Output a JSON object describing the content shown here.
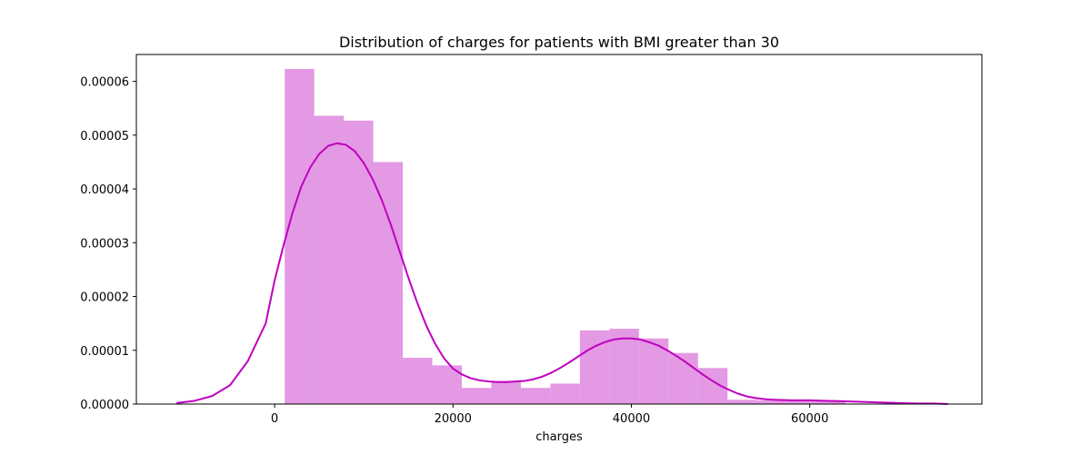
{
  "chart_data": {
    "type": "bar",
    "title": "Distribution of charges for patients with BMI greater than 30",
    "xlabel": "charges",
    "ylabel": "",
    "xlim": [
      -15500,
      79300
    ],
    "ylim": [
      0,
      6.5e-05
    ],
    "x_ticks": [
      0,
      20000,
      40000,
      60000
    ],
    "y_ticks": [
      0,
      1e-05,
      2e-05,
      3e-05,
      4e-05,
      5e-05,
      6e-05
    ],
    "x_tick_labels": [
      "0",
      "20000",
      "40000",
      "60000"
    ],
    "y_tick_labels": [
      "0.00000",
      "0.00001",
      "0.00002",
      "0.00003",
      "0.00004",
      "0.00005",
      "0.00006"
    ],
    "grid": false,
    "colors": {
      "bars": "#e399e3",
      "kde": "#bf00bf"
    },
    "histogram": {
      "bin_edges": [
        1130,
        4440,
        7750,
        11060,
        14370,
        17680,
        20990,
        24300,
        27610,
        30920,
        34230,
        37540,
        40850,
        44160,
        47470,
        50780,
        54090,
        57400,
        60710,
        64020
      ],
      "densities": [
        6.23e-05,
        5.36e-05,
        5.27e-05,
        4.5e-05,
        8.6e-06,
        7.2e-06,
        3e-06,
        4.3e-06,
        3e-06,
        3.8e-06,
        1.37e-05,
        1.4e-05,
        1.22e-05,
        9.5e-06,
        6.7e-06,
        8e-07,
        7e-07,
        7e-07,
        7e-07
      ]
    },
    "series": [
      {
        "type": "line",
        "x": [
          -11000,
          -9000,
          -7000,
          -5000,
          -3000,
          -1000,
          0,
          1000,
          2000,
          3000,
          4000,
          5000,
          6000,
          7000,
          8000,
          9000,
          10000,
          11000,
          12000,
          13000,
          14000,
          15000,
          16000,
          17000,
          18000,
          19000,
          20000,
          21000,
          22000,
          23000,
          24000,
          25000,
          26000,
          27000,
          28000,
          29000,
          30000,
          31000,
          32000,
          33000,
          34000,
          35000,
          36000,
          37000,
          38000,
          39000,
          40000,
          41000,
          42000,
          43000,
          44000,
          45000,
          46000,
          47000,
          48000,
          49000,
          50000,
          51000,
          52000,
          53000,
          54000,
          55000,
          56000,
          58000,
          60000,
          62000,
          64000,
          66000,
          68000,
          70000,
          72000,
          74000,
          75500
        ],
        "y": [
          2e-07,
          6e-07,
          1.5e-06,
          3.5e-06,
          8e-06,
          1.5e-05,
          2.3e-05,
          2.95e-05,
          3.55e-05,
          4.05e-05,
          4.4e-05,
          4.65e-05,
          4.8e-05,
          4.85e-05,
          4.82e-05,
          4.7e-05,
          4.48e-05,
          4.18e-05,
          3.8e-05,
          3.35e-05,
          2.85e-05,
          2.35e-05,
          1.88e-05,
          1.46e-05,
          1.12e-05,
          8.5e-06,
          6.6e-06,
          5.5e-06,
          4.8e-06,
          4.4e-06,
          4.2e-06,
          4.1e-06,
          4.1e-06,
          4.2e-06,
          4.3e-06,
          4.6e-06,
          5.1e-06,
          5.8e-06,
          6.7e-06,
          7.7e-06,
          8.8e-06,
          9.9e-06,
          1.08e-05,
          1.15e-05,
          1.2e-05,
          1.22e-05,
          1.22e-05,
          1.2e-05,
          1.15e-05,
          1.09e-05,
          1e-05,
          9e-06,
          7.9e-06,
          6.7e-06,
          5.5e-06,
          4.4e-06,
          3.4e-06,
          2.6e-06,
          1.9e-06,
          1.4e-06,
          1.1e-06,
          9e-07,
          8e-07,
          7e-07,
          7e-07,
          6e-07,
          5e-07,
          4e-07,
          3e-07,
          2e-07,
          1e-07,
          1e-07,
          0.0
        ]
      }
    ]
  }
}
